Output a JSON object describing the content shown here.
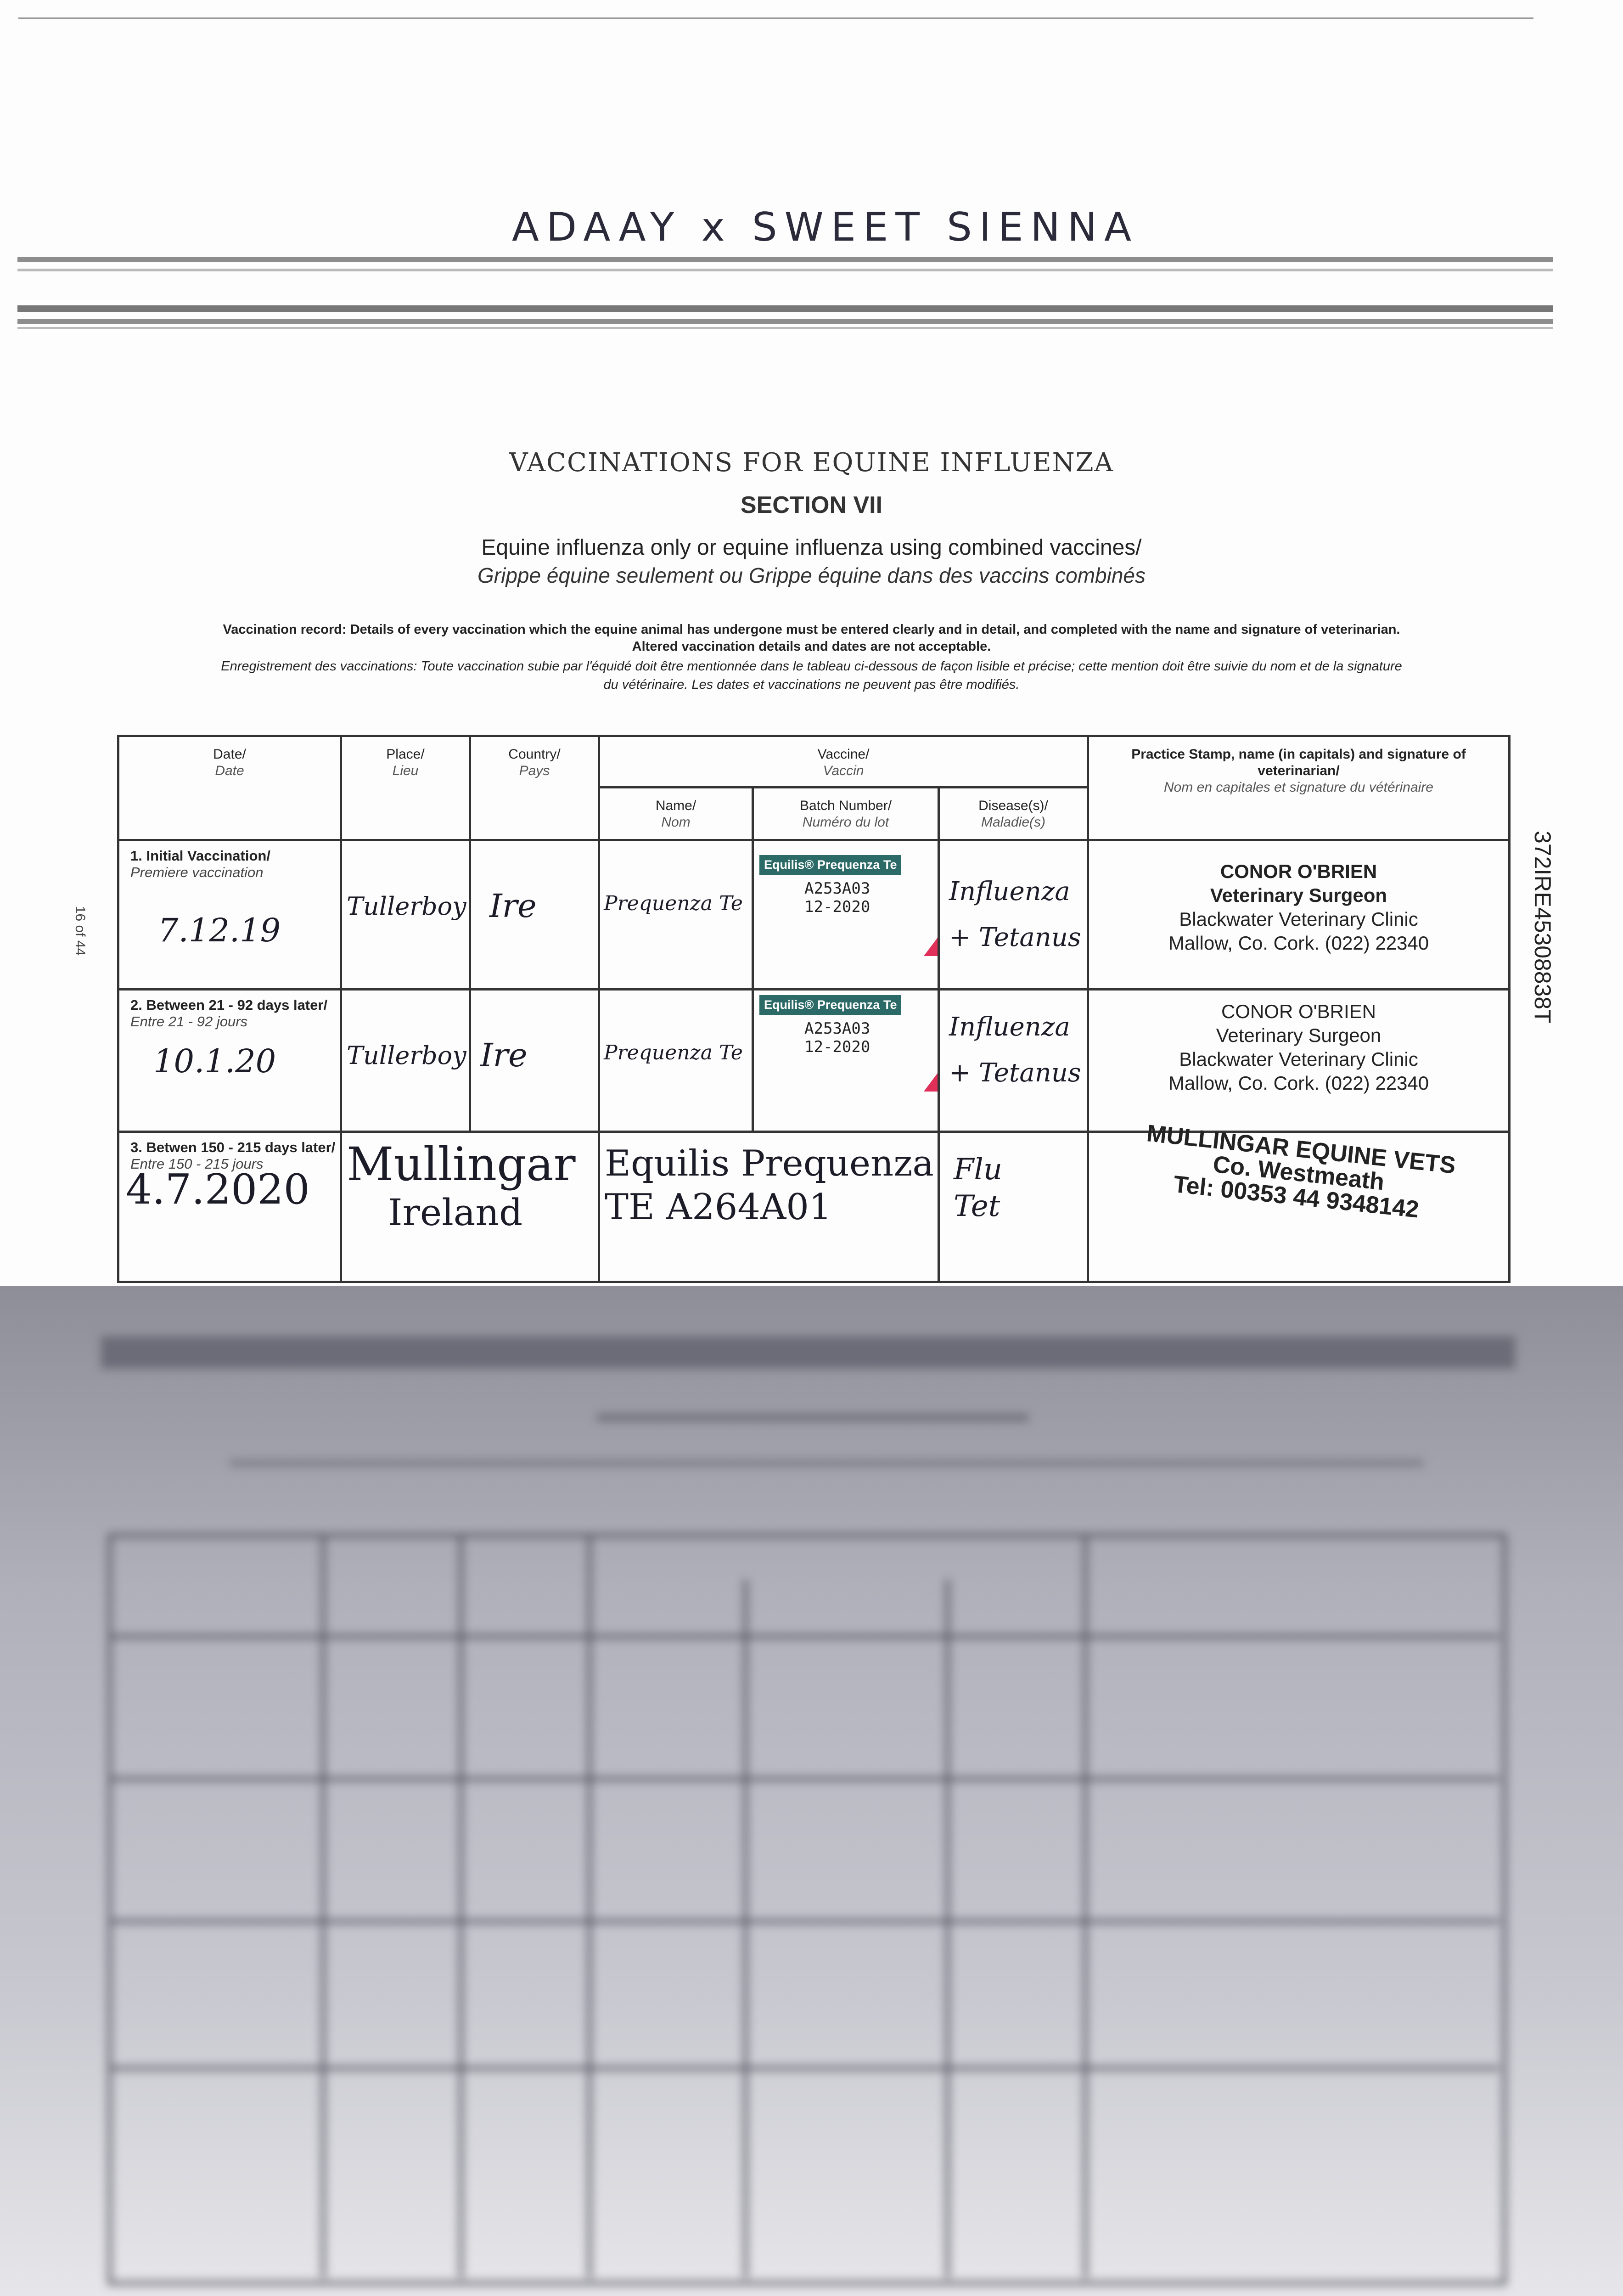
{
  "handwritten_title": "ADAAY x SWEET SIENNA",
  "page_marker": "16 of 44",
  "side_code": "372IRE45308838T",
  "title": "VACCINATIONS FOR EQUINE INFLUENZA",
  "section": "SECTION VII",
  "subtitle_en": "Equine influenza only or equine influenza using combined vaccines/",
  "subtitle_fr": "Grippe équine seulement ou Grippe équine dans des vaccins combinés",
  "notice": {
    "en_1": "Vaccination record: Details of every vaccination which the equine animal has undergone must be entered clearly and in detail, and completed with the name and signature of veterinarian.",
    "en_2": "Altered vaccination details and dates are not acceptable.",
    "fr_1": "Enregistrement des vaccinations: Toute vaccination subie par l'équidé doit être mentionnée dans le tableau ci-dessous de façon lisible et précise; cette mention doit être suivie du nom et de la signature",
    "fr_2": "du vétérinaire. Les dates et vaccinations ne peuvent pas être modifiés."
  },
  "table": {
    "headers": {
      "date": "Date/",
      "date_fr": "Date",
      "place": "Place/",
      "place_fr": "Lieu",
      "country": "Country/",
      "country_fr": "Pays",
      "vaccine": "Vaccine/",
      "vaccine_fr": "Vaccin",
      "name": "Name/",
      "name_fr": "Nom",
      "batch": "Batch Number/",
      "batch_fr": "Numéro du lot",
      "disease": "Disease(s)/",
      "disease_fr": "Maladie(s)",
      "stamp": "Practice Stamp, name (in capitals) and signature of veterinarian/",
      "stamp_fr": "Nom en capitales et signature du vétérinaire"
    },
    "rows": [
      {
        "label": "1. Initial Vaccination/",
        "label_fr": "Premiere vaccination",
        "date": "7.12.19",
        "place": "Tullerboy",
        "country": "Ire",
        "name": "Prequenza Te",
        "batch_label": "Equilis® Prequenza Te",
        "batch": "A253A03",
        "expiry": "12-2020",
        "disease": "Influenza + Tetanus",
        "stamp": [
          "CONOR O'BRIEN",
          "Veterinary Surgeon",
          "Blackwater Veterinary Clinic",
          "Mallow, Co. Cork. (022) 22340"
        ]
      },
      {
        "label": "2. Between 21 - 92 days later/",
        "label_fr": "Entre 21 - 92 jours",
        "date": "10.1.20",
        "place": "Tullerboy",
        "country": "Ire",
        "name": "Prequenza Te",
        "batch_label": "Equilis® Prequenza Te",
        "batch": "A253A03",
        "expiry": "12-2020",
        "disease": "Influenza + Tetanus",
        "stamp": [
          "CONOR O'BRIEN",
          "Veterinary Surgeon",
          "Blackwater Veterinary Clinic",
          "Mallow, Co. Cork. (022) 22340"
        ]
      },
      {
        "label": "3. Betwen 150 - 215 days later/",
        "label_fr": "Entre 150 - 215 jours",
        "date": "4.7.2020",
        "place": "Mullingar",
        "country": "Ireland",
        "name": "Equilis Prequenza TE A264A01",
        "disease": "Flu Tet",
        "stamp": [
          "MULLINGAR EQUINE VETS",
          "Co. Westmeath",
          "Tel: 00353 44 9348142"
        ]
      }
    ]
  },
  "colors": {
    "label_bg": "#2b6a66",
    "marker": "#e0305a",
    "ink": "#1c1c28"
  }
}
